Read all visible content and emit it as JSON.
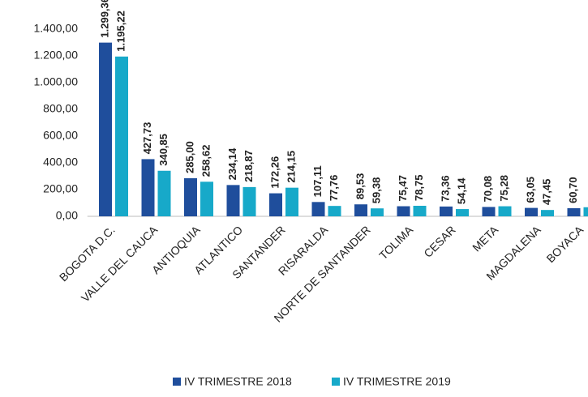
{
  "chart_data": {
    "type": "bar",
    "categories": [
      "BOGOTA D.C.",
      "VALLE DEL CAUCA",
      "ANTIOQUIA",
      "ATLANTICO",
      "SANTANDER",
      "RISARALDA",
      "NORTE DE SANTANDER",
      "TOLIMA",
      "CESAR",
      "META",
      "MAGDALENA",
      "BOYACA"
    ],
    "series": [
      {
        "name": "IV TRIMESTRE 2018",
        "color": "#1f4e9c",
        "values": [
          1299.36,
          427.73,
          285.0,
          234.14,
          172.26,
          107.11,
          89.53,
          75.47,
          73.36,
          70.08,
          63.05,
          60.7
        ],
        "value_labels": [
          "1.299,36",
          "427,73",
          "285,00",
          "234,14",
          "172,26",
          "107,11",
          "89,53",
          "75,47",
          "73,36",
          "70,08",
          "63,05",
          "60,70"
        ]
      },
      {
        "name": "IV TRIMESTRE 2019",
        "color": "#17a9c9",
        "values": [
          1195.22,
          340.85,
          258.62,
          218.87,
          214.15,
          77.76,
          59.38,
          78.75,
          54.14,
          75.28,
          47.45,
          68
        ],
        "value_labels": [
          "1.195,22",
          "340,85",
          "258,62",
          "218,87",
          "214,15",
          "77,76",
          "59,38",
          "78,75",
          "54,14",
          "75,28",
          "47,45",
          null
        ]
      }
    ],
    "ylim": [
      0,
      1400
    ],
    "yticks": [
      {
        "value": 0,
        "label": "0,00"
      },
      {
        "value": 200,
        "label": "200,00"
      },
      {
        "value": 400,
        "label": "400,00"
      },
      {
        "value": 600,
        "label": "600,00"
      },
      {
        "value": 800,
        "label": "800,00"
      },
      {
        "value": 1000,
        "label": "1.000,00"
      },
      {
        "value": 1200,
        "label": "1.200,00"
      },
      {
        "value": 1400,
        "label": "1.400,00"
      }
    ],
    "legend": "bottom"
  }
}
